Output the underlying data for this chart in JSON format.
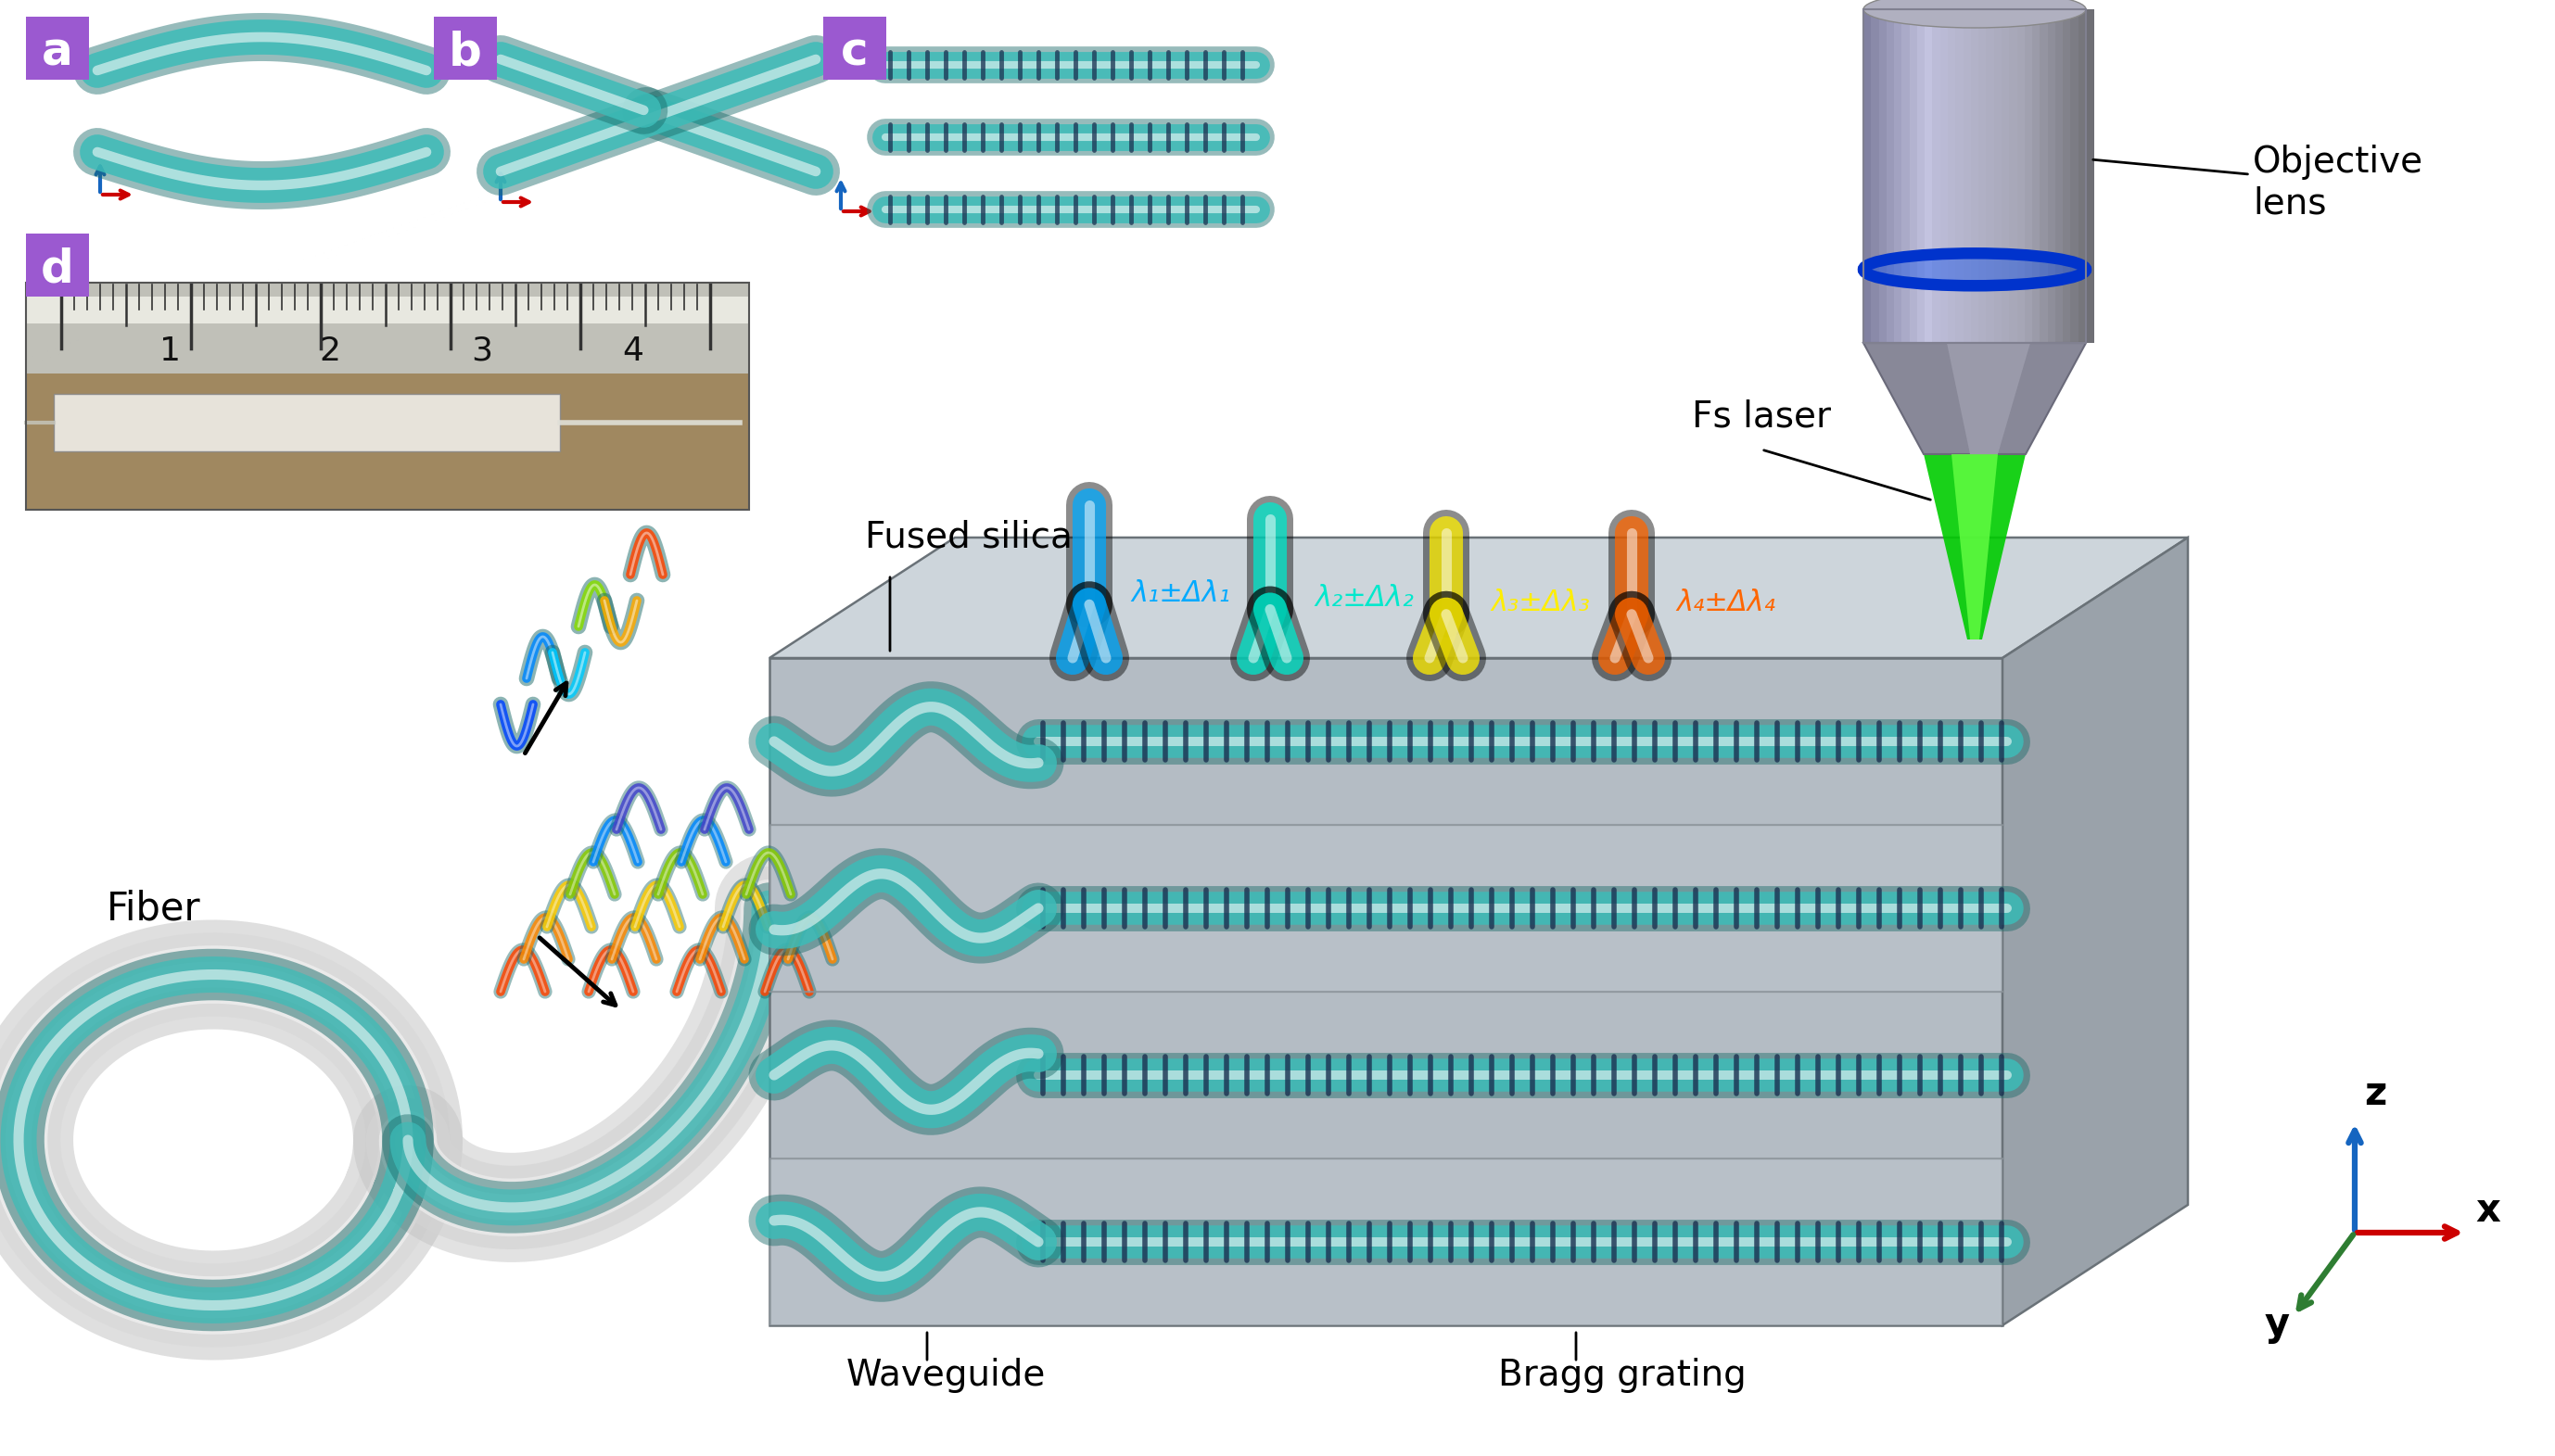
{
  "bg_color": "#ffffff",
  "panel_label_bg": "#9b59d0",
  "teal_color": "#3dbcb8",
  "teal_dark": "#1a6a68",
  "lambda_labels": [
    "λ₁±Δλ₁",
    "λ₂±Δλ₂",
    "λ₃±Δλ₃",
    "λ₄±Δλ₄"
  ],
  "lambda_colors": [
    "#00aaff",
    "#00e8cc",
    "#ffee00",
    "#ff6600"
  ],
  "axis_z_color": "#1565c0",
  "axis_x_color": "#cc0000",
  "axis_y_color": "#2e7d32",
  "box_front_color": "#b4bcc4",
  "box_top_color": "#cdd5db",
  "box_right_color": "#9aa2aa",
  "lens_main": "#b0b0c0",
  "lens_light": "#d8d8e8",
  "lens_dark": "#808090",
  "lens_tip": "#909098",
  "green_beam": "#00dd00",
  "green_beam_bright": "#88ff44",
  "ruler_bg": "#c8c8b8",
  "ruler_light": "#e0ddd0",
  "wood_color": "#b8975a",
  "annotation_fontsize": 28,
  "label_fontsize": 30,
  "panel_fontsize": 36
}
